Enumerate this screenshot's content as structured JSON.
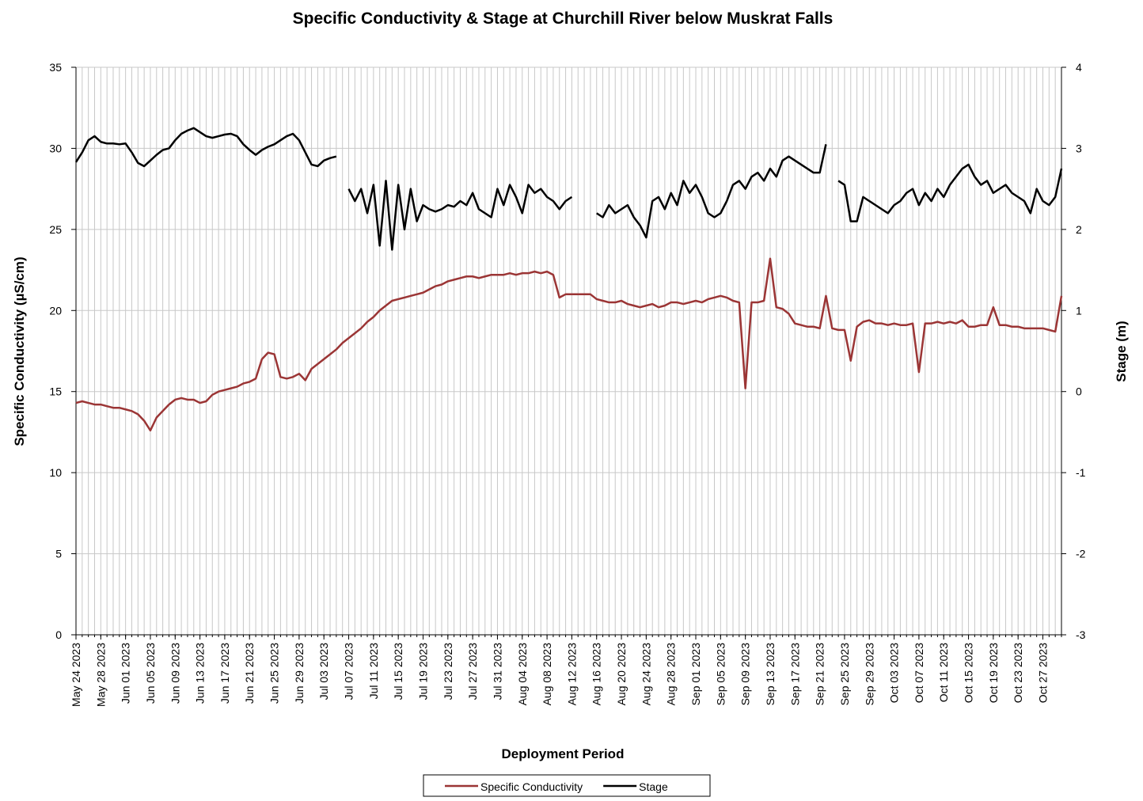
{
  "chart_data": {
    "type": "line",
    "title": "Specific Conductivity & Stage at Churchill River below Muskrat Falls",
    "x_label": "Deployment Period",
    "y_label": "Specific Conductivity  (µS/cm)",
    "y2_label": "Stage (m)",
    "grid": true,
    "legend": "bottom",
    "xlim": [
      "2023-05-24",
      "2023-10-30"
    ],
    "ylim": [
      0,
      35
    ],
    "yticks": [
      0,
      5,
      10,
      15,
      20,
      25,
      30,
      35
    ],
    "y2lim": [
      -3,
      4
    ],
    "y2ticks": [
      -3,
      -2,
      -1,
      0,
      1,
      2,
      3,
      4
    ],
    "xticks": [
      {
        "value": "2023-05-24",
        "label": "May 24 2023"
      },
      {
        "value": "2023-05-28",
        "label": "May 28 2023"
      },
      {
        "value": "2023-06-01",
        "label": "Jun 01 2023"
      },
      {
        "value": "2023-06-05",
        "label": "Jun 05 2023"
      },
      {
        "value": "2023-06-09",
        "label": "Jun 09 2023"
      },
      {
        "value": "2023-06-13",
        "label": "Jun 13 2023"
      },
      {
        "value": "2023-06-17",
        "label": "Jun 17 2023"
      },
      {
        "value": "2023-06-21",
        "label": "Jun 21 2023"
      },
      {
        "value": "2023-06-25",
        "label": "Jun 25 2023"
      },
      {
        "value": "2023-06-29",
        "label": "Jun 29 2023"
      },
      {
        "value": "2023-07-03",
        "label": "Jul 03 2023"
      },
      {
        "value": "2023-07-07",
        "label": "Jul 07 2023"
      },
      {
        "value": "2023-07-11",
        "label": "Jul 11 2023"
      },
      {
        "value": "2023-07-15",
        "label": "Jul 15 2023"
      },
      {
        "value": "2023-07-19",
        "label": "Jul 19 2023"
      },
      {
        "value": "2023-07-23",
        "label": "Jul 23 2023"
      },
      {
        "value": "2023-07-27",
        "label": "Jul 27 2023"
      },
      {
        "value": "2023-07-31",
        "label": "Jul 31 2023"
      },
      {
        "value": "2023-08-04",
        "label": "Aug 04 2023"
      },
      {
        "value": "2023-08-08",
        "label": "Aug 08 2023"
      },
      {
        "value": "2023-08-12",
        "label": "Aug 12 2023"
      },
      {
        "value": "2023-08-16",
        "label": "Aug 16 2023"
      },
      {
        "value": "2023-08-20",
        "label": "Aug 20 2023"
      },
      {
        "value": "2023-08-24",
        "label": "Aug 24 2023"
      },
      {
        "value": "2023-08-28",
        "label": "Aug 28 2023"
      },
      {
        "value": "2023-09-01",
        "label": "Sep 01 2023"
      },
      {
        "value": "2023-09-05",
        "label": "Sep 05 2023"
      },
      {
        "value": "2023-09-09",
        "label": "Sep 09 2023"
      },
      {
        "value": "2023-09-13",
        "label": "Sep 13 2023"
      },
      {
        "value": "2023-09-17",
        "label": "Sep 17 2023"
      },
      {
        "value": "2023-09-21",
        "label": "Sep 21 2023"
      },
      {
        "value": "2023-09-25",
        "label": "Sep 25 2023"
      },
      {
        "value": "2023-09-29",
        "label": "Sep 29 2023"
      },
      {
        "value": "2023-10-03",
        "label": "Oct 03 2023"
      },
      {
        "value": "2023-10-07",
        "label": "Oct 07 2023"
      },
      {
        "value": "2023-10-11",
        "label": "Oct 11 2023"
      },
      {
        "value": "2023-10-15",
        "label": "Oct 15 2023"
      },
      {
        "value": "2023-10-19",
        "label": "Oct 19 2023"
      },
      {
        "value": "2023-10-23",
        "label": "Oct 23 2023"
      },
      {
        "value": "2023-10-27",
        "label": "Oct 27 2023"
      }
    ],
    "x": [
      "2023-05-24",
      "2023-05-25",
      "2023-05-26",
      "2023-05-27",
      "2023-05-28",
      "2023-05-29",
      "2023-05-30",
      "2023-05-31",
      "2023-06-01",
      "2023-06-02",
      "2023-06-03",
      "2023-06-04",
      "2023-06-05",
      "2023-06-06",
      "2023-06-07",
      "2023-06-08",
      "2023-06-09",
      "2023-06-10",
      "2023-06-11",
      "2023-06-12",
      "2023-06-13",
      "2023-06-14",
      "2023-06-15",
      "2023-06-16",
      "2023-06-17",
      "2023-06-18",
      "2023-06-19",
      "2023-06-20",
      "2023-06-21",
      "2023-06-22",
      "2023-06-23",
      "2023-06-24",
      "2023-06-25",
      "2023-06-26",
      "2023-06-27",
      "2023-06-28",
      "2023-06-29",
      "2023-06-30",
      "2023-07-01",
      "2023-07-02",
      "2023-07-03",
      "2023-07-04",
      "2023-07-05",
      "2023-07-06",
      "2023-07-07",
      "2023-07-08",
      "2023-07-09",
      "2023-07-10",
      "2023-07-11",
      "2023-07-12",
      "2023-07-13",
      "2023-07-14",
      "2023-07-15",
      "2023-07-16",
      "2023-07-17",
      "2023-07-18",
      "2023-07-19",
      "2023-07-20",
      "2023-07-21",
      "2023-07-22",
      "2023-07-23",
      "2023-07-24",
      "2023-07-25",
      "2023-07-26",
      "2023-07-27",
      "2023-07-28",
      "2023-07-29",
      "2023-07-30",
      "2023-07-31",
      "2023-08-01",
      "2023-08-02",
      "2023-08-03",
      "2023-08-04",
      "2023-08-05",
      "2023-08-06",
      "2023-08-07",
      "2023-08-08",
      "2023-08-09",
      "2023-08-10",
      "2023-08-11",
      "2023-08-12",
      "2023-08-13",
      "2023-08-14",
      "2023-08-15",
      "2023-08-16",
      "2023-08-17",
      "2023-08-18",
      "2023-08-19",
      "2023-08-20",
      "2023-08-21",
      "2023-08-22",
      "2023-08-23",
      "2023-08-24",
      "2023-08-25",
      "2023-08-26",
      "2023-08-27",
      "2023-08-28",
      "2023-08-29",
      "2023-08-30",
      "2023-08-31",
      "2023-09-01",
      "2023-09-02",
      "2023-09-03",
      "2023-09-04",
      "2023-09-05",
      "2023-09-06",
      "2023-09-07",
      "2023-09-08",
      "2023-09-09",
      "2023-09-10",
      "2023-09-11",
      "2023-09-12",
      "2023-09-13",
      "2023-09-14",
      "2023-09-15",
      "2023-09-16",
      "2023-09-17",
      "2023-09-18",
      "2023-09-19",
      "2023-09-20",
      "2023-09-21",
      "2023-09-22",
      "2023-09-23",
      "2023-09-24",
      "2023-09-25",
      "2023-09-26",
      "2023-09-27",
      "2023-09-28",
      "2023-09-29",
      "2023-09-30",
      "2023-10-01",
      "2023-10-02",
      "2023-10-03",
      "2023-10-04",
      "2023-10-05",
      "2023-10-06",
      "2023-10-07",
      "2023-10-08",
      "2023-10-09",
      "2023-10-10",
      "2023-10-11",
      "2023-10-12",
      "2023-10-13",
      "2023-10-14",
      "2023-10-15",
      "2023-10-16",
      "2023-10-17",
      "2023-10-18",
      "2023-10-19",
      "2023-10-20",
      "2023-10-21",
      "2023-10-22",
      "2023-10-23",
      "2023-10-24",
      "2023-10-25",
      "2023-10-26",
      "2023-10-27",
      "2023-10-28",
      "2023-10-29",
      "2023-10-30"
    ],
    "series": [
      {
        "name": "Specific Conductivity",
        "color": "#9b3535",
        "values": [
          14.3,
          14.4,
          14.3,
          14.2,
          14.2,
          14.1,
          14.0,
          14.0,
          13.9,
          13.8,
          13.6,
          13.2,
          12.6,
          13.4,
          13.8,
          14.2,
          14.5,
          14.6,
          14.5,
          14.5,
          14.3,
          14.4,
          14.8,
          15.0,
          15.1,
          15.2,
          15.3,
          15.5,
          15.6,
          15.8,
          17.0,
          17.4,
          17.3,
          15.9,
          15.8,
          15.9,
          16.1,
          15.7,
          16.4,
          16.7,
          17.0,
          17.3,
          17.6,
          18.0,
          18.3,
          18.6,
          18.9,
          19.3,
          19.6,
          20.0,
          20.3,
          20.6,
          20.7,
          20.8,
          20.9,
          21.0,
          21.1,
          21.3,
          21.5,
          21.6,
          21.8,
          21.9,
          22.0,
          22.1,
          22.1,
          22.0,
          22.1,
          22.2,
          22.2,
          22.2,
          22.3,
          22.2,
          22.3,
          22.3,
          22.4,
          22.3,
          22.4,
          22.2,
          20.8,
          21.0,
          21.0,
          21.0,
          21.0,
          21.0,
          20.7,
          20.6,
          20.5,
          20.5,
          20.6,
          20.4,
          20.3,
          20.2,
          20.3,
          20.4,
          20.2,
          20.3,
          20.5,
          20.5,
          20.4,
          20.5,
          20.6,
          20.5,
          20.7,
          20.8,
          20.9,
          20.8,
          20.6,
          20.5,
          15.2,
          20.5,
          20.5,
          20.6,
          23.2,
          20.2,
          20.1,
          19.8,
          19.2,
          19.1,
          19.0,
          19.0,
          18.9,
          20.9,
          18.9,
          18.8,
          18.8,
          16.9,
          19.0,
          19.3,
          19.4,
          19.2,
          19.2,
          19.1,
          19.2,
          19.1,
          19.1,
          19.2,
          16.2,
          19.2,
          19.2,
          19.3,
          19.2,
          19.3,
          19.2,
          19.4,
          19.0,
          19.0,
          19.1,
          19.1,
          20.2,
          19.1,
          19.1,
          19.0,
          19.0,
          18.9,
          18.9,
          18.9,
          18.9,
          18.8,
          18.7,
          20.9
        ]
      },
      {
        "name": "Stage",
        "color": "#000000",
        "axis": "y2",
        "values": [
          2.83,
          2.95,
          3.1,
          3.15,
          3.08,
          3.06,
          3.06,
          3.05,
          3.06,
          2.95,
          2.82,
          2.78,
          2.85,
          2.92,
          2.98,
          3.0,
          3.1,
          3.18,
          3.22,
          3.25,
          3.2,
          3.15,
          3.13,
          3.15,
          3.17,
          3.18,
          3.15,
          3.05,
          2.98,
          2.92,
          2.98,
          3.02,
          3.05,
          3.1,
          3.15,
          3.18,
          3.1,
          2.95,
          2.8,
          2.78,
          2.85,
          2.88,
          2.9,
          null,
          2.5,
          2.35,
          2.5,
          2.2,
          2.55,
          1.8,
          2.6,
          1.75,
          2.55,
          2.0,
          2.5,
          2.1,
          2.3,
          2.25,
          2.22,
          2.25,
          2.3,
          2.28,
          2.35,
          2.3,
          2.45,
          2.25,
          2.2,
          2.15,
          2.5,
          2.3,
          2.55,
          2.4,
          2.2,
          2.55,
          2.45,
          2.5,
          2.4,
          2.35,
          2.25,
          2.35,
          2.4,
          null,
          null,
          null,
          2.2,
          2.15,
          2.3,
          2.2,
          2.25,
          2.3,
          2.15,
          2.05,
          1.9,
          2.35,
          2.4,
          2.25,
          2.45,
          2.3,
          2.6,
          2.45,
          2.55,
          2.4,
          2.2,
          2.15,
          2.2,
          2.35,
          2.55,
          2.6,
          2.5,
          2.65,
          2.7,
          2.6,
          2.75,
          2.65,
          2.85,
          2.9,
          2.85,
          2.8,
          2.75,
          2.7,
          2.7,
          3.05,
          null,
          2.6,
          2.55,
          2.1,
          2.1,
          2.4,
          2.35,
          2.3,
          2.25,
          2.2,
          2.3,
          2.35,
          2.45,
          2.5,
          2.3,
          2.45,
          2.35,
          2.5,
          2.4,
          2.55,
          2.65,
          2.75,
          2.8,
          2.65,
          2.55,
          2.6,
          2.45,
          2.5,
          2.55,
          2.45,
          2.4,
          2.35,
          2.2,
          2.5,
          2.35,
          2.3,
          2.4,
          2.75
        ]
      }
    ]
  }
}
